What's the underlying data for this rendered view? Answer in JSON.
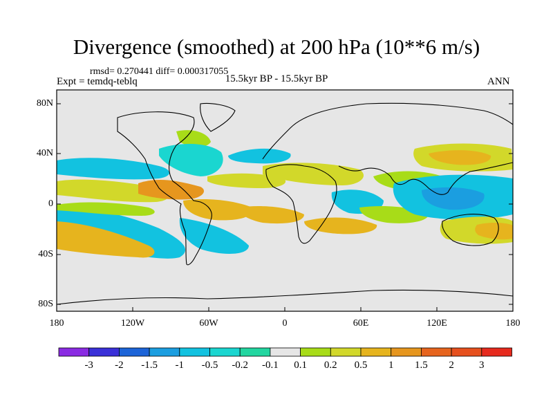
{
  "title": "Divergence (smoothed) at 200 hPa (10**6 m/s)",
  "stats": "rmsd= 0.270441 diff= 0.000317055",
  "expt": "Expt = temdq-teblq",
  "center_label": "15.5kyr BP - 15.5kyr BP",
  "season": "ANN",
  "lat_ticks": [
    "80N",
    "40N",
    "0",
    "40S",
    "80S"
  ],
  "lon_ticks": [
    "180",
    "120W",
    "60W",
    "0",
    "60E",
    "120E",
    "180"
  ],
  "colorbar": {
    "colors": [
      "#8a2be2",
      "#3a30d8",
      "#1c64d8",
      "#1b9ee0",
      "#12c2e0",
      "#1ad6d0",
      "#22d6a0",
      "#e6e6e6",
      "#a8dc18",
      "#d2d82a",
      "#e6b41e",
      "#e6961e",
      "#e6641e",
      "#e6501e",
      "#e62a1e"
    ],
    "labels": [
      "-3",
      "-2",
      "-1.5",
      "-1",
      "-0.5",
      "-0.2",
      "-0.1",
      "0.1",
      "0.2",
      "0.5",
      "1",
      "1.5",
      "2",
      "3"
    ]
  },
  "map_colors": {
    "background": "#e6e6e6",
    "light_blue": "#1ad6d0",
    "blue": "#12c2e0",
    "deep_blue": "#1b9ee0",
    "green": "#a8dc18",
    "yellow": "#d2d82a",
    "orange": "#e6b41e",
    "dark_orange": "#e6961e",
    "red": "#e6641e",
    "coast": "#000000"
  }
}
